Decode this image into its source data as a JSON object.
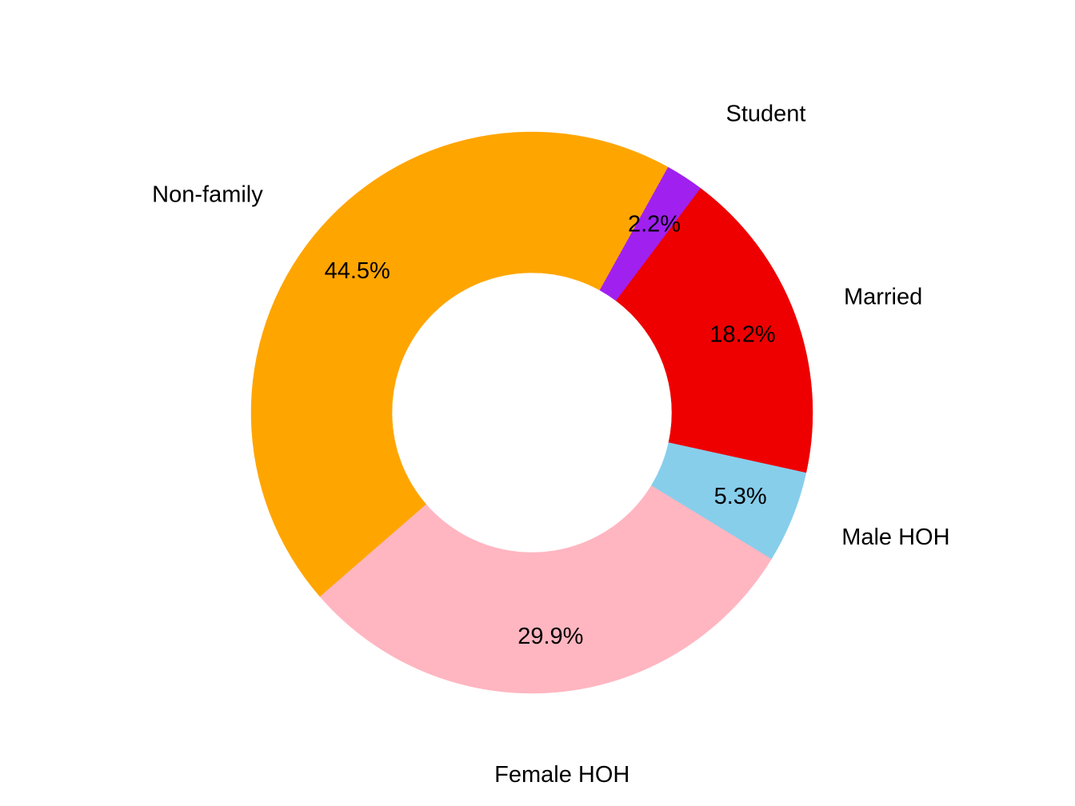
{
  "chart_data": {
    "type": "pie",
    "donut": true,
    "start_angle_deg": -131,
    "direction": "clockwise",
    "slices": [
      {
        "label": "Non-family",
        "value": 44.5,
        "value_label": "44.5%",
        "color": "#FFA500"
      },
      {
        "label": "Student",
        "value": 2.2,
        "value_label": "2.2%",
        "color": "#A020F0"
      },
      {
        "label": "Married",
        "value": 18.2,
        "value_label": "18.2%",
        "color": "#EE0000"
      },
      {
        "label": "Male HOH",
        "value": 5.3,
        "value_label": "5.3%",
        "color": "#87CEEB"
      },
      {
        "label": "Female HOH",
        "value": 29.9,
        "value_label": "29.9%",
        "color": "#FFB6C1"
      }
    ],
    "legend": "none"
  }
}
